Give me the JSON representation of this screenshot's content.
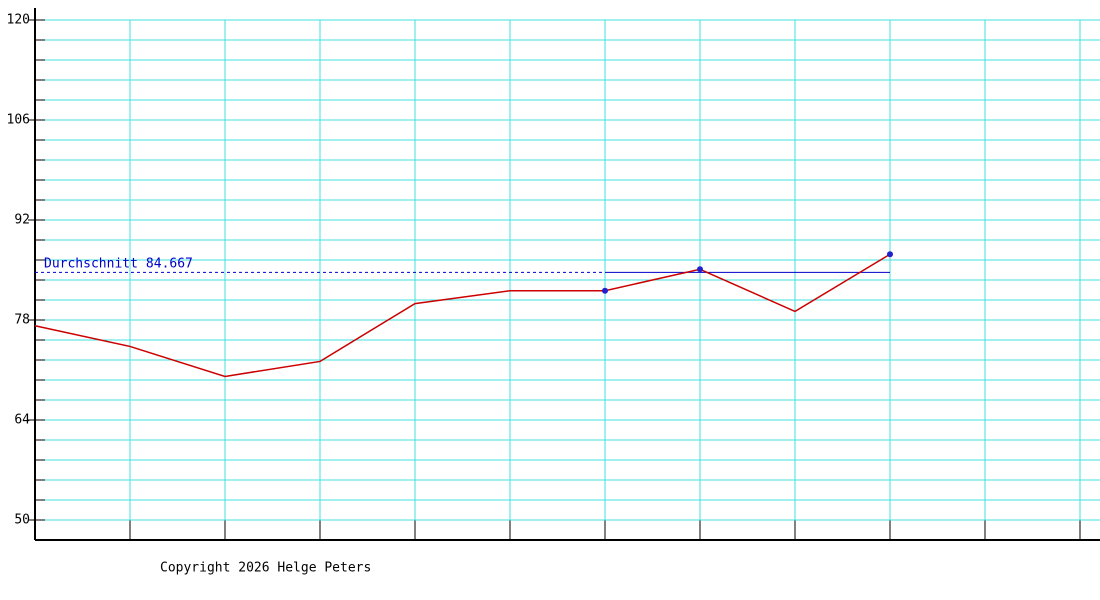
{
  "chart_data": {
    "type": "line",
    "x": [
      0,
      1,
      2,
      3,
      4,
      5,
      6,
      7,
      8,
      9
    ],
    "values": [
      77.2,
      74.3,
      70.1,
      72.2,
      80.3,
      82.1,
      82.1,
      85.1,
      79.2,
      87.2
    ],
    "color": "#cc0000",
    "highlighted": [
      6,
      7,
      9
    ],
    "marker_color": "#2020cc",
    "xlim": [
      0,
      11
    ],
    "ylim": [
      47.2,
      121.68
    ],
    "yticks": [
      50,
      64,
      78,
      92,
      106,
      120
    ],
    "grid": true,
    "grid_color": "#40e0e0",
    "average": {
      "label": "Durchschnitt",
      "value": 84.667,
      "color": "#0000cc"
    },
    "footer": "Copyright 2026 Helge Peters"
  }
}
